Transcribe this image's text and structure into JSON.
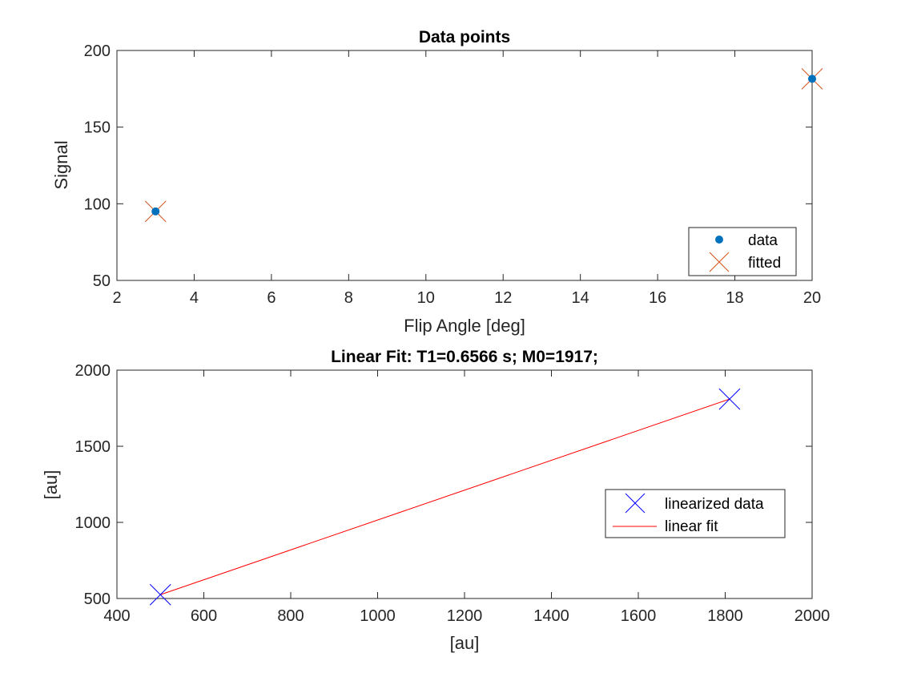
{
  "chart_data": [
    {
      "type": "scatter",
      "title": "Data points",
      "xlabel": "Flip Angle [deg]",
      "ylabel": "Signal",
      "xlim": [
        2,
        20
      ],
      "ylim": [
        50,
        200
      ],
      "xticks": [
        2,
        4,
        6,
        8,
        10,
        12,
        14,
        16,
        18,
        20
      ],
      "yticks": [
        50,
        100,
        150,
        200
      ],
      "grid": false,
      "legend_position": "bottom-right",
      "series": [
        {
          "name": "data",
          "marker": "filled-circle",
          "color": "#0072BD",
          "x": [
            3,
            20
          ],
          "y": [
            95,
            181.5
          ]
        },
        {
          "name": "fitted",
          "marker": "x",
          "color": "#D95319",
          "x": [
            3,
            20
          ],
          "y": [
            95,
            181.5
          ]
        }
      ]
    },
    {
      "type": "line",
      "title": "Linear Fit: T1=0.6566 s; M0=1917;",
      "xlabel": "[au]",
      "ylabel": "[au]",
      "xlim": [
        400,
        2000
      ],
      "ylim": [
        500,
        2000
      ],
      "xticks": [
        400,
        600,
        800,
        1000,
        1200,
        1400,
        1600,
        1800,
        2000
      ],
      "yticks": [
        500,
        1000,
        1500,
        2000
      ],
      "grid": false,
      "legend_position": "center-right",
      "series": [
        {
          "name": "linearized data",
          "marker": "x",
          "color": "#0000FF",
          "x": [
            500,
            1810
          ],
          "y": [
            525,
            1810
          ]
        },
        {
          "name": "linear fit",
          "marker": "line",
          "color": "#FF0000",
          "x": [
            500,
            1810
          ],
          "y": [
            525,
            1810
          ]
        }
      ]
    }
  ]
}
